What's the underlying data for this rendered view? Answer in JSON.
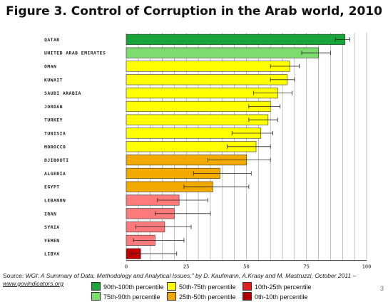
{
  "title": "Figure 3. Control of Corruption in the Arab world, 2010",
  "source": {
    "prefix": "Source: ",
    "citation": "WGI: A Summary of Data, Methodology and Analytical Issues,\" by D. Kaufmann, A.Kraay and M. Mastruzzi, October 2011 –",
    "link": "www.govindicators.org"
  },
  "page_number": "3",
  "legend": [
    {
      "label": "90th-100th percentile",
      "color": "#1aa53a"
    },
    {
      "label": "75th-90th percentile",
      "color": "#7ddc6e"
    },
    {
      "label": "50th-75th percentile",
      "color": "#ffff00"
    },
    {
      "label": "25th-50th percentile",
      "color": "#f2a900"
    },
    {
      "label": "10th-25th percentile",
      "color": "#e02020"
    },
    {
      "label": "0th-10th percentile",
      "color": "#b00000"
    }
  ],
  "chart_data": {
    "type": "bar",
    "orientation": "horizontal",
    "xlim": [
      0,
      100
    ],
    "xticks": [
      "0",
      "25",
      "50",
      "75",
      "100"
    ],
    "grid": true,
    "categories": [
      "QATAR",
      "UNITED ARAB EMIRATES",
      "OMAN",
      "KUWAIT",
      "SAUDI ARABIA",
      "JORDAN",
      "TURKEY",
      "TUNISIA",
      "MOROCCO",
      "DJIBOUTI",
      "ALGERIA",
      "EGYPT",
      "LEBANON",
      "IRAN",
      "SYRIA",
      "YEMEN",
      "LIBYA"
    ],
    "values": [
      91,
      80,
      68,
      67,
      63,
      60,
      59,
      56,
      54,
      50,
      39,
      36,
      22,
      20,
      16,
      12,
      6
    ],
    "error_low": [
      87,
      73,
      60,
      60,
      53,
      51,
      51,
      44,
      42,
      34,
      28,
      24,
      13,
      12,
      4,
      3,
      2
    ],
    "error_high": [
      93,
      85,
      72,
      70,
      69,
      64,
      63,
      61,
      60,
      60,
      52,
      51,
      34,
      35,
      27,
      24,
      21
    ],
    "bar_colors": [
      "#1aa53a",
      "#7ddc6e",
      "#ffff00",
      "#ffff00",
      "#ffff00",
      "#ffff00",
      "#ffff00",
      "#ffff00",
      "#ffff00",
      "#f2a900",
      "#f2a900",
      "#f2a900",
      "#ff7a7a",
      "#ff7a7a",
      "#ff7a7a",
      "#ff7a7a",
      "#c00000"
    ]
  }
}
